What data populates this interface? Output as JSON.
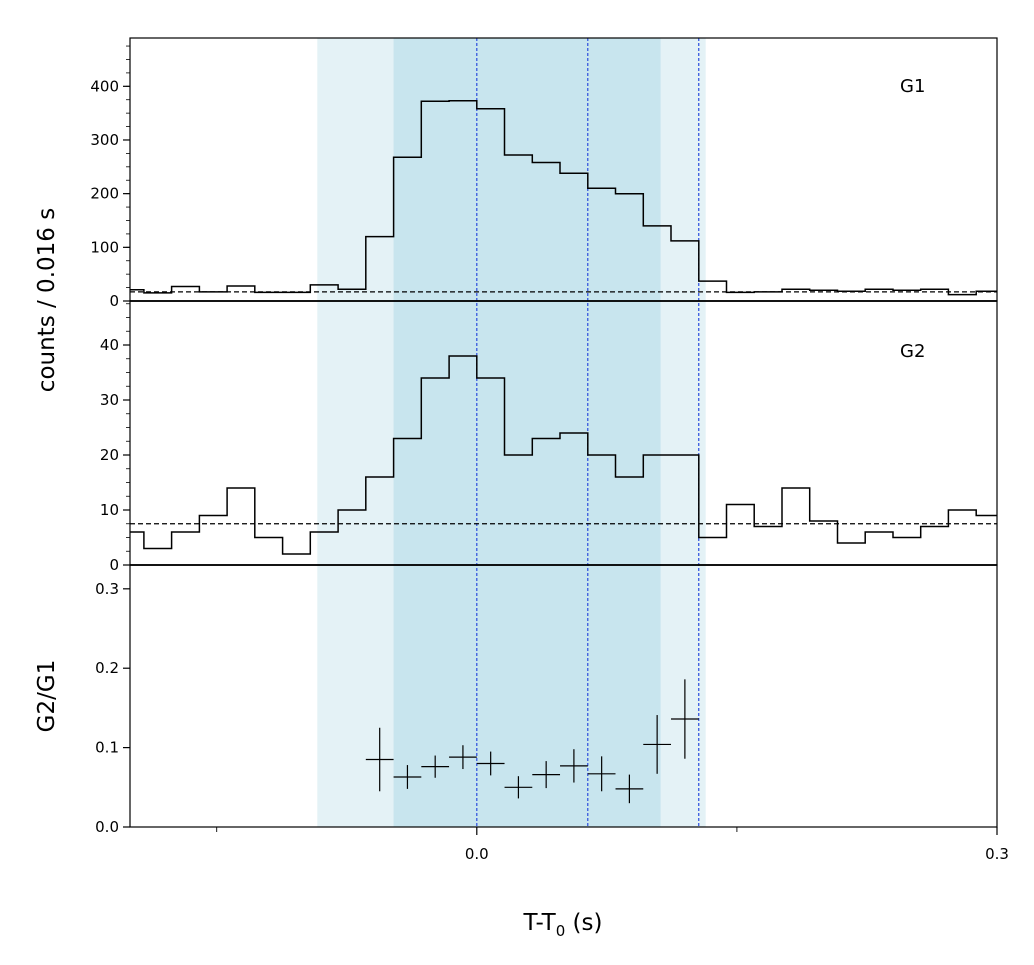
{
  "chart_data": {
    "type": "line",
    "x_label": "T-T",
    "x_label_sub": "0",
    "x_label_unit": " (s)",
    "y_label_counts": "counts /  0.016 s",
    "y_label_ratio": "G2/G1",
    "x_ticks": [
      {
        "value": 0.0,
        "label": "0.0"
      },
      {
        "value": 0.3,
        "label": "0.3"
      }
    ],
    "x_minor_ticks": [
      -0.15,
      0.15
    ],
    "xlim": [
      -0.2,
      0.3
    ],
    "shaded_regions": [
      {
        "x0": -0.092,
        "x1": 0.132,
        "color": "#e4f2f6",
        "level": "light"
      },
      {
        "x0": -0.048,
        "x1": 0.106,
        "color": "#c8e5ee",
        "level": "dark"
      }
    ],
    "vlines": [
      0.0,
      0.064,
      0.128
    ],
    "vline_color": "#2b4bdc",
    "panels": [
      {
        "id": "G1",
        "label": "G1",
        "ylim": [
          0,
          490
        ],
        "y_ticks": [
          0,
          100,
          200,
          300,
          400
        ],
        "y_tick_labels": [
          "0",
          "100",
          "200",
          "300",
          "400"
        ],
        "background": 17,
        "bin_edges": [
          -0.2,
          -0.192,
          -0.176,
          -0.16,
          -0.144,
          -0.128,
          -0.112,
          -0.096,
          -0.08,
          -0.064,
          -0.048,
          -0.032,
          -0.016,
          0.0,
          0.016,
          0.032,
          0.048,
          0.064,
          0.08,
          0.096,
          0.112,
          0.128,
          0.144,
          0.16,
          0.176,
          0.192,
          0.208,
          0.224,
          0.24,
          0.256,
          0.272,
          0.288,
          0.3
        ],
        "counts": [
          21,
          15,
          27,
          17,
          28,
          16,
          16,
          30,
          22,
          120,
          268,
          372,
          373,
          358,
          272,
          258,
          238,
          210,
          200,
          140,
          112,
          37,
          16,
          17,
          22,
          20,
          18,
          22,
          20,
          22,
          12,
          18
        ]
      },
      {
        "id": "G2",
        "label": "G2",
        "ylim": [
          0,
          48
        ],
        "y_ticks": [
          0,
          10,
          20,
          30,
          40
        ],
        "y_tick_labels": [
          "0",
          "10",
          "20",
          "30",
          "40"
        ],
        "background": 7.5,
        "bin_edges": [
          -0.2,
          -0.192,
          -0.176,
          -0.16,
          -0.144,
          -0.128,
          -0.112,
          -0.096,
          -0.08,
          -0.064,
          -0.048,
          -0.032,
          -0.016,
          0.0,
          0.016,
          0.032,
          0.048,
          0.064,
          0.08,
          0.096,
          0.112,
          0.128,
          0.144,
          0.16,
          0.176,
          0.192,
          0.208,
          0.224,
          0.24,
          0.256,
          0.272,
          0.288,
          0.3
        ],
        "counts": [
          6,
          3,
          6,
          9,
          14,
          5,
          2,
          6,
          10,
          16,
          23,
          34,
          38,
          34,
          20,
          23,
          24,
          20,
          16,
          20,
          20,
          5,
          11,
          7,
          14,
          8,
          4,
          6,
          5,
          7,
          10,
          9
        ]
      },
      {
        "id": "ratio",
        "ylim": [
          0,
          0.33
        ],
        "y_ticks": [
          0.0,
          0.1,
          0.2,
          0.3
        ],
        "y_tick_labels": [
          "0.0",
          "0.1",
          "0.2",
          "0.3"
        ],
        "points": [
          {
            "x": -0.056,
            "y": 0.085,
            "xerr": 0.008,
            "yerr": 0.04
          },
          {
            "x": -0.04,
            "y": 0.063,
            "xerr": 0.008,
            "yerr": 0.015
          },
          {
            "x": -0.024,
            "y": 0.076,
            "xerr": 0.008,
            "yerr": 0.014
          },
          {
            "x": -0.008,
            "y": 0.088,
            "xerr": 0.008,
            "yerr": 0.015
          },
          {
            "x": 0.008,
            "y": 0.08,
            "xerr": 0.008,
            "yerr": 0.015
          },
          {
            "x": 0.024,
            "y": 0.05,
            "xerr": 0.008,
            "yerr": 0.014
          },
          {
            "x": 0.04,
            "y": 0.066,
            "xerr": 0.008,
            "yerr": 0.017
          },
          {
            "x": 0.056,
            "y": 0.077,
            "xerr": 0.008,
            "yerr": 0.021
          },
          {
            "x": 0.072,
            "y": 0.067,
            "xerr": 0.008,
            "yerr": 0.022
          },
          {
            "x": 0.088,
            "y": 0.048,
            "xerr": 0.008,
            "yerr": 0.018
          },
          {
            "x": 0.104,
            "y": 0.104,
            "xerr": 0.008,
            "yerr": 0.037
          },
          {
            "x": 0.12,
            "y": 0.136,
            "xerr": 0.008,
            "yerr": 0.05
          }
        ]
      }
    ]
  }
}
